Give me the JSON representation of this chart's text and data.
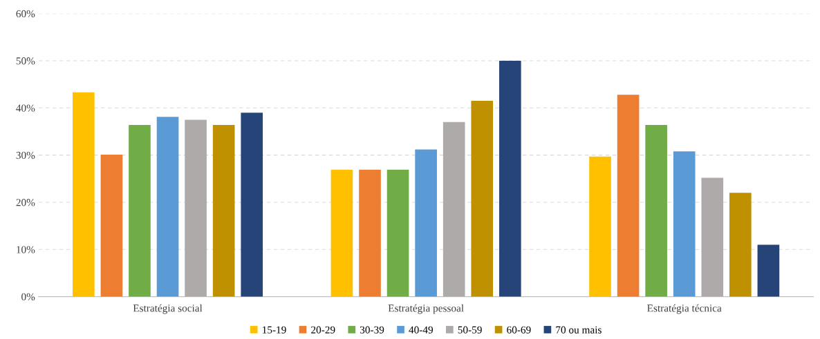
{
  "chart_data": {
    "type": "bar",
    "categories": [
      "Estratégia social",
      "Estratégia pessoal",
      "Estratégia técnica"
    ],
    "series": [
      {
        "name": "15-19",
        "color": "#ffc000",
        "values": [
          43.3,
          26.9,
          29.7
        ]
      },
      {
        "name": "20-29",
        "color": "#ed7d31",
        "values": [
          30.1,
          26.9,
          42.8
        ]
      },
      {
        "name": "30-39",
        "color": "#70ad47",
        "values": [
          36.4,
          26.9,
          36.4
        ]
      },
      {
        "name": "40-49",
        "color": "#5b9bd5",
        "values": [
          38.1,
          31.2,
          30.8
        ]
      },
      {
        "name": "50-59",
        "color": "#aeaaaa",
        "values": [
          37.5,
          37.0,
          25.2
        ]
      },
      {
        "name": "60-69",
        "color": "#bf9000",
        "values": [
          36.4,
          41.5,
          22.0
        ]
      },
      {
        "name": "70 ou mais",
        "color": "#264478",
        "values": [
          39.0,
          50.0,
          11.0
        ]
      }
    ],
    "ylim": [
      0,
      60
    ],
    "yticks": [
      {
        "value": 0,
        "label": "0%"
      },
      {
        "value": 10,
        "label": "10%"
      },
      {
        "value": 20,
        "label": "20%"
      },
      {
        "value": 30,
        "label": "30%"
      },
      {
        "value": 40,
        "label": "40%"
      },
      {
        "value": 50,
        "label": "50%"
      },
      {
        "value": 60,
        "label": "60%"
      }
    ],
    "grid": "y",
    "legend": "bottom"
  }
}
